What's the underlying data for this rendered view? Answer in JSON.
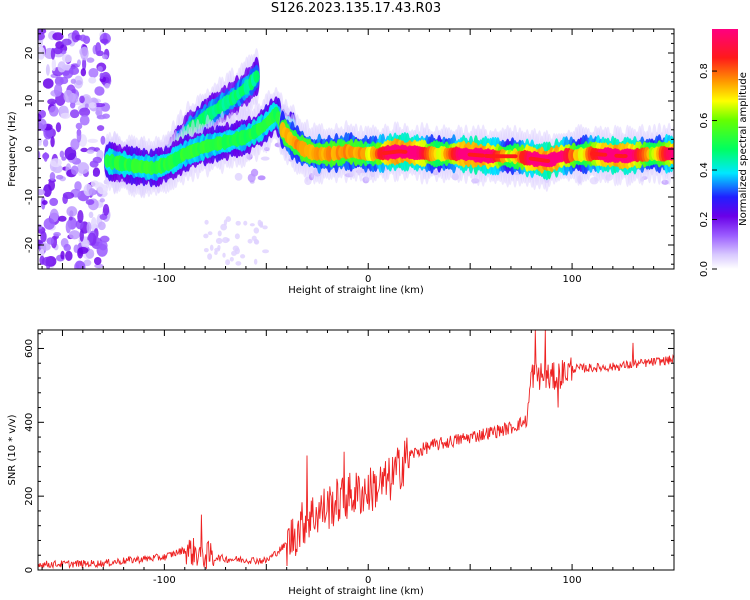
{
  "title": "S126.2023.135.17.43.R03",
  "chart_data": [
    {
      "type": "heatmap",
      "xlabel": "Height of straight line (km)",
      "ylabel": "Frequency (Hz)",
      "xlim": [
        -162,
        150
      ],
      "ylim": [
        -25,
        25
      ],
      "x_ticks": [
        -100,
        0,
        100
      ],
      "y_ticks": [
        -20,
        -10,
        0,
        10,
        20
      ],
      "colorbar": {
        "label": "Normalized spectral amplitude",
        "range": [
          0,
          1
        ],
        "ticks": [
          "0.0",
          "0.2",
          "0.4",
          "0.6",
          "0.8"
        ],
        "colors": [
          "#ffffff",
          "#c9b3ff",
          "#7b00ff",
          "#0000ff",
          "#00e5ff",
          "#00ff00",
          "#ffff00",
          "#ff8000",
          "#ff0000",
          "#ff007f"
        ]
      },
      "ridges": [
        {
          "name_hint": "upper",
          "points": [
            [
              -128,
              -2.5
            ],
            [
              -118,
              -3.5
            ],
            [
              -108,
              -4
            ],
            [
              -100,
              -3
            ],
            [
              -95,
              0
            ],
            [
              -88,
              4
            ],
            [
              -80,
              6.5
            ],
            [
              -72,
              9
            ],
            [
              -65,
              11
            ],
            [
              -58,
              13.5
            ],
            [
              -54,
              15.5
            ]
          ],
          "amp": 0.3
        },
        {
          "name_hint": "lower",
          "points": [
            [
              -128,
              -2.5
            ],
            [
              -115,
              -3.5
            ],
            [
              -105,
              -4
            ],
            [
              -98,
              -3
            ],
            [
              -90,
              -1
            ],
            [
              -80,
              0.5
            ],
            [
              -70,
              1.5
            ],
            [
              -60,
              2.5
            ],
            [
              -52,
              4.5
            ],
            [
              -45,
              7.5
            ],
            [
              -42,
              4.5
            ],
            [
              -36,
              3.5
            ]
          ],
          "amp": 0.35
        },
        {
          "name_hint": "trail",
          "points": [
            [
              -42,
              4
            ],
            [
              -38,
              2
            ],
            [
              -32,
              0
            ],
            [
              -26,
              -1
            ],
            [
              -18,
              -1
            ],
            [
              -10,
              -0.5
            ],
            [
              -2,
              -1
            ],
            [
              5,
              -1
            ],
            [
              15,
              -0.5
            ],
            [
              30,
              -1
            ],
            [
              45,
              -1
            ],
            [
              60,
              -1.5
            ],
            [
              72,
              -1.5
            ],
            [
              80,
              -2
            ],
            [
              88,
              -2.5
            ],
            [
              95,
              -1.5
            ],
            [
              110,
              -1
            ],
            [
              125,
              -1.5
            ],
            [
              140,
              -1
            ],
            [
              150,
              -1
            ]
          ],
          "amp": 0.55
        }
      ]
    },
    {
      "type": "line",
      "xlabel": "Height of straight line (km)",
      "ylabel": "SNR (10 * v/v)",
      "xlim": [
        -162,
        150
      ],
      "ylim": [
        0,
        650
      ],
      "x_ticks": [
        -100,
        0,
        100
      ],
      "y_ticks": [
        0,
        200,
        400,
        600
      ],
      "color": "#ee2222",
      "trend": [
        [
          -162,
          15
        ],
        [
          -130,
          18
        ],
        [
          -120,
          25
        ],
        [
          -100,
          35
        ],
        [
          -90,
          55
        ],
        [
          -80,
          40
        ],
        [
          -70,
          30
        ],
        [
          -50,
          25
        ],
        [
          -40,
          70
        ],
        [
          -30,
          140
        ],
        [
          -20,
          170
        ],
        [
          -10,
          200
        ],
        [
          0,
          215
        ],
        [
          10,
          240
        ],
        [
          20,
          310
        ],
        [
          30,
          335
        ],
        [
          50,
          360
        ],
        [
          70,
          385
        ],
        [
          78,
          405
        ],
        [
          80,
          530
        ],
        [
          90,
          520
        ],
        [
          100,
          545
        ],
        [
          120,
          550
        ],
        [
          150,
          570
        ]
      ],
      "spikes": [
        [
          -82,
          150
        ],
        [
          -30,
          310
        ],
        [
          -12,
          320
        ],
        [
          18,
          350
        ],
        [
          82,
          650
        ],
        [
          87,
          650
        ],
        [
          93,
          440
        ],
        [
          130,
          615
        ]
      ]
    }
  ]
}
